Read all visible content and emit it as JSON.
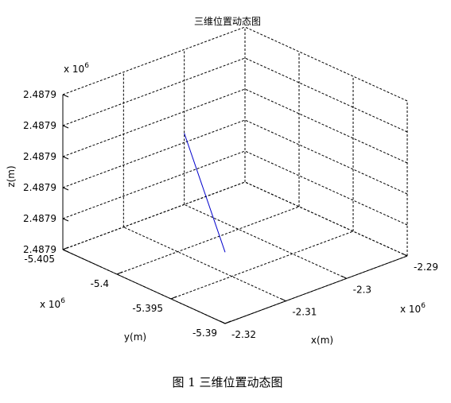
{
  "chart_data": {
    "type": "line",
    "title": "三维位置动态图",
    "xlabel": "x(m)",
    "ylabel": "y(m)",
    "zlabel": "z(m)",
    "x_ticks": [
      "-2.32",
      "-2.31",
      "-2.3",
      "-2.29"
    ],
    "y_ticks": [
      "-5.39",
      "-5.395",
      "-5.4",
      "-5.405"
    ],
    "z_ticks": [
      "2.4879",
      "2.4879",
      "2.4879",
      "2.4879",
      "2.4879",
      "2.4879"
    ],
    "x_exponent": "x 10",
    "x_exponent_power": "6",
    "y_exponent": "x 10",
    "y_exponent_power": "6",
    "z_exponent": "x 10",
    "z_exponent_power": "6",
    "xlim": [
      -2.32,
      -2.29
    ],
    "ylim": [
      -5.405,
      -5.39
    ],
    "zlim": [
      0,
      5
    ],
    "grid": true,
    "line_color": "#0000cc",
    "series": [
      {
        "x": [
          -2.32,
          -2.3
        ],
        "y": [
          -5.39,
          -5.405
        ],
        "z": [
          2.3,
          2.3
        ]
      }
    ]
  },
  "caption": "图 1  三维位置动态图"
}
